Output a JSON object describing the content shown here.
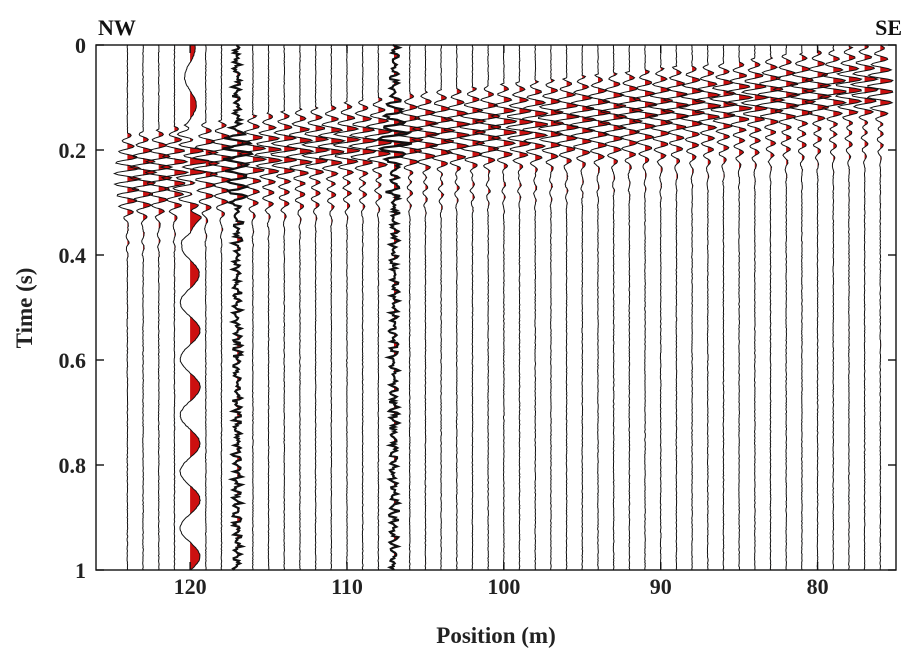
{
  "chart_data": {
    "type": "seismic-wiggle",
    "xlabel": "Position (m)",
    "ylabel": "Time (s)",
    "left_label": "NW",
    "right_label": "SE",
    "xlim": [
      126,
      75
    ],
    "ylim": [
      0,
      1
    ],
    "x_ticks": [
      120,
      110,
      100,
      90,
      80
    ],
    "y_ticks": [
      0,
      0.2,
      0.4,
      0.6,
      0.8,
      1
    ],
    "y_tick_labels": [
      "0",
      "0.2",
      "0.4",
      "0.6",
      "0.8",
      "1"
    ],
    "trace_positions": [
      124,
      123,
      122,
      121,
      120,
      119,
      118,
      117,
      116,
      115,
      114,
      113,
      112,
      111,
      110,
      109,
      108,
      107,
      106,
      105,
      104,
      103,
      102,
      101,
      100,
      99,
      98,
      97,
      96,
      95,
      94,
      93,
      92,
      91,
      90,
      89,
      88,
      87,
      86,
      85,
      84,
      83,
      82,
      81,
      80,
      79,
      78,
      77,
      76
    ],
    "first_arrival": {
      "x": [
        124,
        115,
        105,
        95,
        85,
        77
      ],
      "t": [
        0.19,
        0.15,
        0.11,
        0.08,
        0.05,
        0.02
      ]
    },
    "colors": {
      "trace": "#111111",
      "fill": "#cc1010",
      "axis": "#111111"
    }
  }
}
